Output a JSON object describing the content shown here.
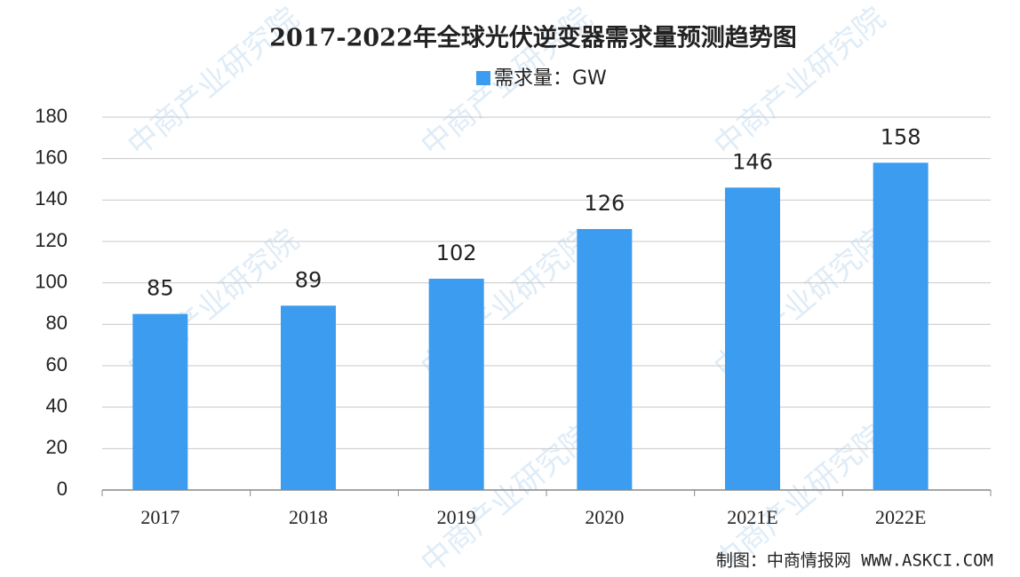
{
  "chart_data": {
    "type": "bar",
    "title": "2017-2022年全球光伏逆变器需求量预测趋势图",
    "series_name": "需求量：GW",
    "categories": [
      "2017",
      "2018",
      "2019",
      "2020",
      "2021E",
      "2022E"
    ],
    "values": [
      85,
      89,
      102,
      126,
      146,
      158
    ],
    "color": "#3b9cf0",
    "ylim": [
      0,
      180
    ],
    "yticks": [
      0,
      20,
      40,
      60,
      80,
      100,
      120,
      140,
      160,
      180
    ],
    "grid": true,
    "source": "制图：中商情报网 WWW.ASKCI.COM",
    "watermark": "中商产业研究院"
  }
}
